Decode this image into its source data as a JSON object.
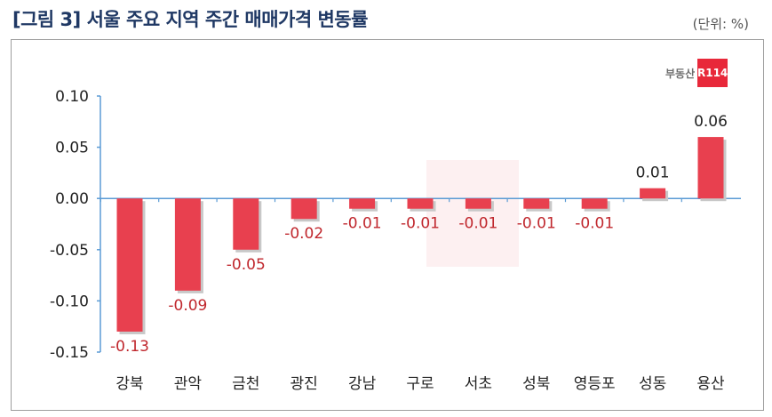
{
  "header": {
    "title": "[그림 3] 서울 주요 지역 주간 매매가격 변동률",
    "unit": "(단위: %)"
  },
  "logo": {
    "text": "부동산",
    "badge": "R114"
  },
  "colors": {
    "bar": "#e8404f",
    "negative_label": "#c0272d",
    "positive_label": "#222222",
    "title": "#1f3864",
    "axis": "#5b9bd5"
  },
  "chart_data": {
    "type": "bar",
    "title": "[그림 3] 서울 주요 지역 주간 매매가격 변동률",
    "xlabel": "",
    "ylabel": "",
    "categories": [
      "강북",
      "관악",
      "금천",
      "광진",
      "강남",
      "구로",
      "서초",
      "성북",
      "영등포",
      "성동",
      "용산"
    ],
    "values": [
      -0.13,
      -0.09,
      -0.05,
      -0.02,
      -0.01,
      -0.01,
      -0.01,
      -0.01,
      -0.01,
      0.01,
      0.06
    ],
    "value_labels": [
      "-0.13",
      "-0.09",
      "-0.05",
      "-0.02",
      "-0.01",
      "-0.01",
      "-0.01",
      "-0.01",
      "-0.01",
      "0.01",
      "0.06"
    ],
    "ylim": [
      -0.15,
      0.1
    ],
    "yticks": [
      0.1,
      0.05,
      0.0,
      -0.05,
      -0.1,
      -0.15
    ],
    "ytick_labels": [
      "0.10",
      "0.05",
      "0.00",
      "-0.05",
      "-0.10",
      "-0.15"
    ],
    "grid": false,
    "legend": "none"
  }
}
